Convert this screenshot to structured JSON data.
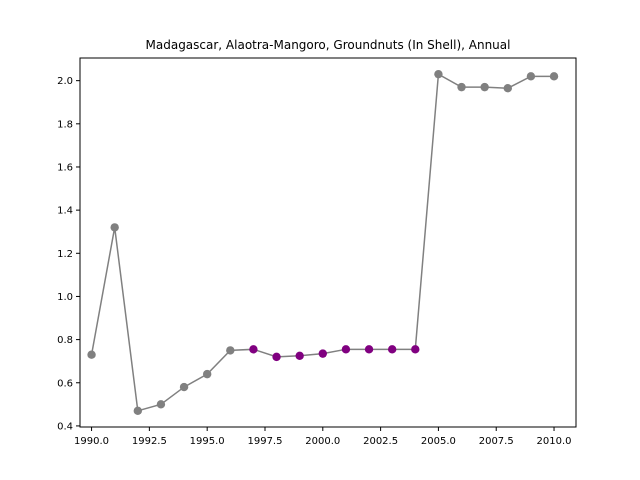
{
  "chart_data": {
    "type": "line",
    "title": "Madagascar, Alaotra-Mangoro, Groundnuts (In Shell), Annual",
    "xlabel": "",
    "ylabel": "",
    "xlim": [
      1989.5,
      2010.95
    ],
    "ylim": [
      0.395,
      2.105
    ],
    "x_ticks": [
      1990.0,
      1992.5,
      1995.0,
      1997.5,
      2000.0,
      2002.5,
      2005.0,
      2007.5,
      2010.0
    ],
    "x_tick_labels": [
      "1990.0",
      "1992.5",
      "1995.0",
      "1997.5",
      "2000.0",
      "2002.5",
      "2005.0",
      "2007.5",
      "2010.0"
    ],
    "y_ticks": [
      0.4,
      0.6,
      0.8,
      1.0,
      1.2,
      1.4,
      1.6,
      1.8,
      2.0
    ],
    "y_tick_labels": [
      "0.4",
      "0.6",
      "0.8",
      "1.0",
      "1.2",
      "1.4",
      "1.6",
      "1.8",
      "2.0"
    ],
    "grid": false,
    "line_color": "#808080",
    "series": [
      {
        "x": [
          1990,
          1991,
          1992,
          1993,
          1994,
          1995,
          1996,
          1997,
          1998,
          1999,
          2000,
          2001,
          2002,
          2003,
          2004,
          2005,
          2006,
          2007,
          2008,
          2009,
          2010
        ],
        "y": [
          0.73,
          1.32,
          0.47,
          0.5,
          0.58,
          0.64,
          0.75,
          0.755,
          0.72,
          0.725,
          0.735,
          0.755,
          0.755,
          0.755,
          0.755,
          2.03,
          1.97,
          1.97,
          1.965,
          2.02,
          2.02
        ],
        "marker_colors": [
          "#808080",
          "#808080",
          "#808080",
          "#808080",
          "#808080",
          "#808080",
          "#808080",
          "#800080",
          "#800080",
          "#800080",
          "#800080",
          "#800080",
          "#800080",
          "#800080",
          "#800080",
          "#808080",
          "#808080",
          "#808080",
          "#808080",
          "#808080",
          "#808080"
        ]
      }
    ]
  }
}
